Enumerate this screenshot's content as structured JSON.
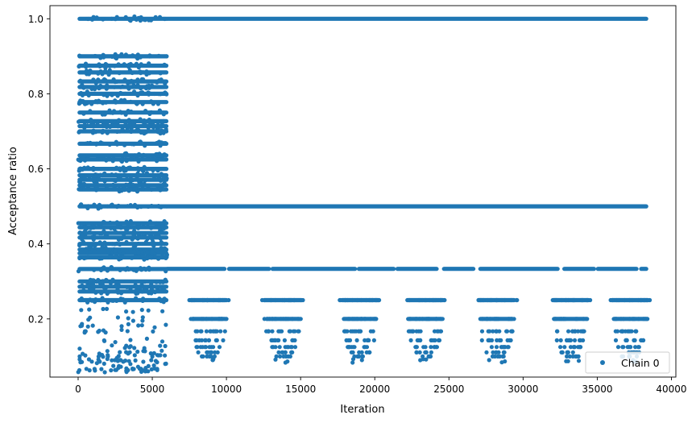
{
  "chart_data": {
    "type": "scatter",
    "xlabel": "Iteration",
    "ylabel": "Acceptance ratio",
    "xlim": [
      -1900,
      40300
    ],
    "ylim": [
      0.045,
      1.035
    ],
    "xticks": [
      0,
      5000,
      10000,
      15000,
      20000,
      25000,
      30000,
      35000,
      40000
    ],
    "xtick_labels": [
      "0",
      "5000",
      "10000",
      "15000",
      "20000",
      "25000",
      "30000",
      "35000",
      "40000"
    ],
    "yticks": [
      0.2,
      0.4,
      0.6,
      0.8,
      1.0
    ],
    "ytick_labels": [
      "0.2",
      "0.4",
      "0.6",
      "0.8",
      "1.0"
    ],
    "grid": false,
    "legend": {
      "position": "lower-right",
      "entries": [
        "Chain 0"
      ]
    },
    "series": [
      {
        "name": "Chain 0",
        "color": "#1f77b4",
        "marker": "circle",
        "x_range": [
          0,
          38300
        ],
        "segments": [
          {
            "iteration_range": [
              0,
              6000
            ],
            "description_values": {
              "dense_levels": [
                1.0,
                0.9,
                0.875,
                0.857,
                0.833,
                0.818,
                0.8,
                0.778,
                0.75,
                0.727,
                0.714,
                0.7,
                0.667,
                0.636,
                0.625,
                0.6,
                0.583,
                0.571,
                0.556,
                0.545,
                0.5,
                0.455,
                0.444,
                0.429,
                0.417,
                0.4,
                0.385,
                0.375,
                0.364,
                0.333,
                0.3,
                0.286,
                0.273,
                0.25
              ],
              "sparse_levels": [
                0.222,
                0.2,
                0.182,
                0.167,
                0.143,
                0.125,
                0.111,
                0.1,
                0.09,
                0.083,
                0.071,
                0.062
              ]
            }
          },
          {
            "iteration_range": [
              6000,
              38300
            ],
            "description_values": {
              "dense_levels": [
                1.0,
                0.5,
                0.333
              ],
              "clustered_levels": [
                0.25,
                0.2,
                0.167,
                0.143,
                0.125,
                0.111,
                0.1
              ],
              "cluster_centers": [
                8800,
                13800,
                19000,
                23400,
                28200,
                33200,
                37200
              ]
            }
          }
        ]
      }
    ]
  }
}
